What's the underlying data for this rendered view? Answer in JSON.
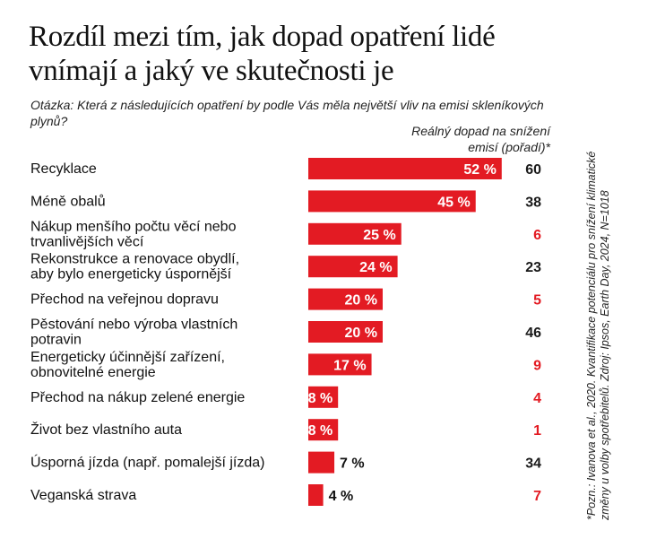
{
  "title": "Rozdíl mezi tím, jak dopad opatření lidé vnímají a jaký ve skutečnosti je",
  "question": "Otázka: Která z následujících opatření by podle Vás měla největší vliv na emisi skleníkových plynů?",
  "impact_header": "Reálný dopad na snížení emisí (pořadí)*",
  "note": "*Pozn.: Ivanova et al., 2020. Kvantifikace potenciálu pro snížení klimatické změny u volby spotřebitelů. Zdroj: Ipsos, Earth Day, 2024, N=1018",
  "colors": {
    "bar": "#e31b23",
    "impact_red": "#e31b23",
    "impact_dark": "#1a1a1a"
  },
  "chart_data": {
    "type": "bar",
    "orientation": "horizontal",
    "categories": [
      [
        "Recyklace"
      ],
      [
        "Méně obalů"
      ],
      [
        "Nákup menšího počtu věcí nebo",
        "trvanlivějších věcí"
      ],
      [
        "Rekonstrukce a renovace obydlí,",
        "aby bylo energeticky úspornější"
      ],
      [
        "Přechod na veřejnou dopravu"
      ],
      [
        "Pěstování nebo výroba vlastních",
        "potravin"
      ],
      [
        "Energeticky účinnější zařízení,",
        "obnovitelné energie"
      ],
      [
        "Přechod na nákup zelené energie"
      ],
      [
        "Život bez vlastního auta"
      ],
      [
        "Úsporná jízda (např. pomalejší jízda)"
      ],
      [
        "Veganská strava"
      ]
    ],
    "values": [
      52,
      45,
      25,
      24,
      20,
      20,
      17,
      8,
      8,
      7,
      4
    ],
    "value_labels": [
      "52 %",
      "45 %",
      "25 %",
      "24 %",
      "20 %",
      "20 %",
      "17 %",
      "8 %",
      "8 %",
      "7 %",
      "4 %"
    ],
    "impact_rank": [
      60,
      38,
      6,
      23,
      5,
      46,
      9,
      4,
      1,
      34,
      7
    ],
    "impact_highlight": [
      false,
      false,
      true,
      false,
      true,
      false,
      true,
      true,
      true,
      false,
      true
    ],
    "unit": "%"
  }
}
